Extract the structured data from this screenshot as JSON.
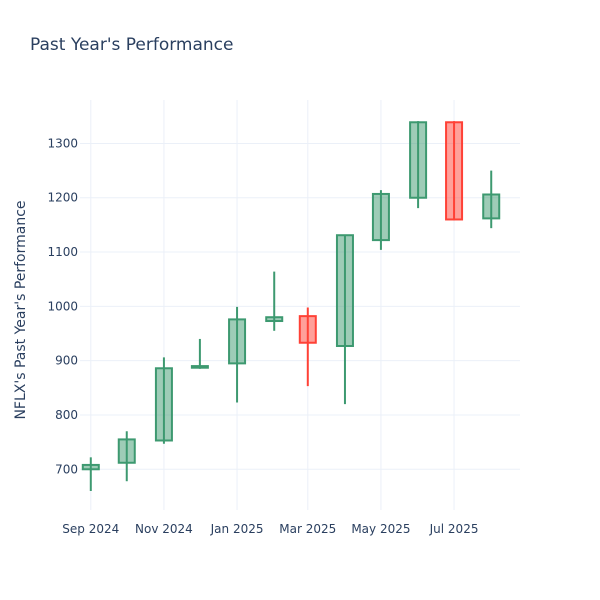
{
  "chart_data": {
    "type": "candlestick",
    "title": "Past Year's Performance",
    "ylabel": "NFLX's Past Year's Performance",
    "xlabel": "",
    "ylim": [
      625,
      1380
    ],
    "xlim": [
      "2024-08-23",
      "2025-08-25"
    ],
    "x_ticks": [
      {
        "date": "2024-09-01",
        "label": "Sep 2024"
      },
      {
        "date": "2024-11-01",
        "label": "Nov 2024"
      },
      {
        "date": "2025-01-01",
        "label": "Jan 2025"
      },
      {
        "date": "2025-03-01",
        "label": "Mar 2025"
      },
      {
        "date": "2025-05-01",
        "label": "May 2025"
      },
      {
        "date": "2025-07-01",
        "label": "Jul 2025"
      }
    ],
    "y_ticks": [
      700,
      800,
      900,
      1000,
      1100,
      1200,
      1300
    ],
    "grid": true,
    "colors": {
      "increasing": "#3d9970",
      "decreasing": "#ff4136",
      "increasing_fill": "rgba(61,153,112,0.5)",
      "decreasing_fill": "rgba(255,65,54,0.5)"
    },
    "candles": [
      {
        "date": "2024-09-01",
        "open": 700,
        "high": 722,
        "low": 660,
        "close": 708
      },
      {
        "date": "2024-10-01",
        "open": 712,
        "high": 770,
        "low": 678,
        "close": 755
      },
      {
        "date": "2024-11-01",
        "open": 753,
        "high": 906,
        "low": 747,
        "close": 886
      },
      {
        "date": "2024-12-01",
        "open": 887,
        "high": 940,
        "low": 885,
        "close": 890
      },
      {
        "date": "2025-01-01",
        "open": 895,
        "high": 999,
        "low": 823,
        "close": 976
      },
      {
        "date": "2025-02-01",
        "open": 973,
        "high": 1064,
        "low": 955,
        "close": 980
      },
      {
        "date": "2025-03-01",
        "open": 982,
        "high": 998,
        "low": 853,
        "close": 933
      },
      {
        "date": "2025-04-01",
        "open": 927,
        "high": 1131,
        "low": 820,
        "close": 1131
      },
      {
        "date": "2025-05-01",
        "open": 1122,
        "high": 1214,
        "low": 1104,
        "close": 1207
      },
      {
        "date": "2025-06-01",
        "open": 1200,
        "high": 1341,
        "low": 1181,
        "close": 1339
      },
      {
        "date": "2025-07-01",
        "open": 1339,
        "high": 1341,
        "low": 1158,
        "close": 1160
      },
      {
        "date": "2025-08-01",
        "open": 1162,
        "high": 1250,
        "low": 1144,
        "close": 1206
      }
    ]
  }
}
